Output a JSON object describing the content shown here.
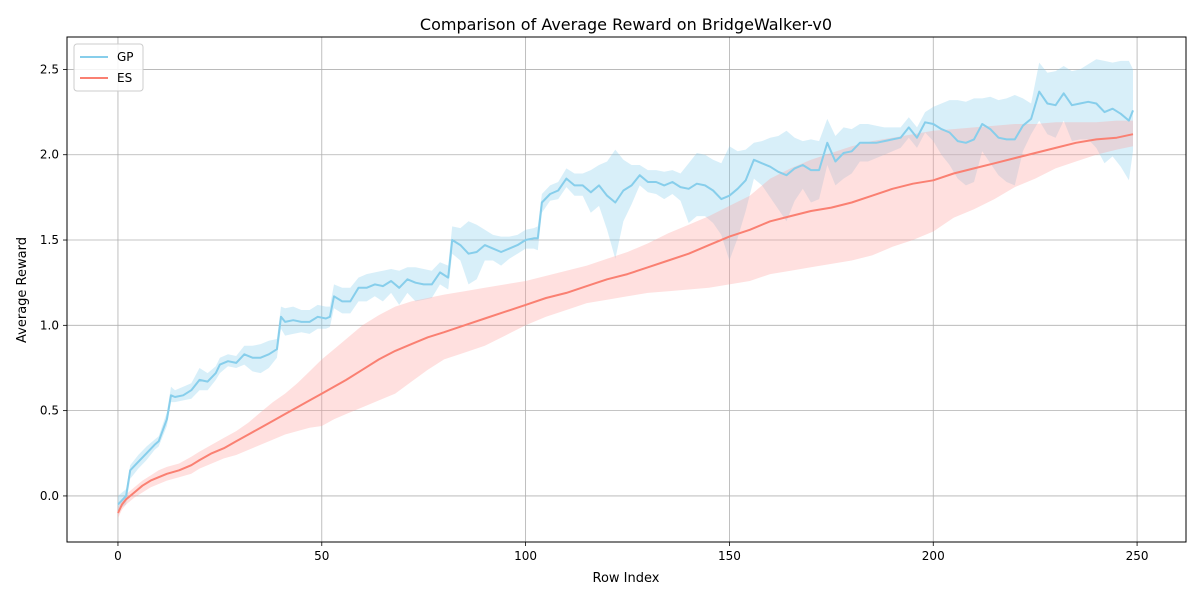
{
  "chart_data": {
    "type": "line",
    "title": "Comparison of Average Reward on BridgeWalker-v0",
    "xlabel": "Row Index",
    "ylabel": "Average Reward",
    "xlim": [
      -12.5,
      262
    ],
    "ylim": [
      -0.27,
      2.69
    ],
    "xticks": [
      0,
      50,
      100,
      150,
      200,
      250
    ],
    "yticks": [
      0.0,
      0.5,
      1.0,
      1.5,
      2.0,
      2.5
    ],
    "xtick_labels": [
      "0",
      "50",
      "100",
      "150",
      "200",
      "250"
    ],
    "ytick_labels": [
      "0.0",
      "0.5",
      "1.0",
      "1.5",
      "2.0",
      "2.5"
    ],
    "grid": true,
    "legend_position": "top-left",
    "shaded_band": "min-max range around each series",
    "series": [
      {
        "name": "GP",
        "color": "#87ceeb",
        "band_color": "#87ceeb",
        "x": [
          0,
          2,
          3,
          5,
          7,
          9,
          10,
          12,
          13,
          14,
          16,
          18,
          20,
          22,
          24,
          25,
          27,
          29,
          31,
          33,
          35,
          37,
          39,
          40,
          41,
          43,
          45,
          47,
          49,
          51,
          52,
          53,
          55,
          57,
          59,
          61,
          63,
          65,
          67,
          69,
          71,
          73,
          75,
          77,
          79,
          81,
          82,
          84,
          86,
          88,
          90,
          92,
          94,
          96,
          98,
          100,
          102,
          103,
          104,
          106,
          108,
          110,
          112,
          114,
          116,
          118,
          120,
          122,
          124,
          126,
          128,
          130,
          132,
          134,
          136,
          138,
          140,
          142,
          144,
          146,
          148,
          150,
          152,
          154,
          156,
          158,
          160,
          162,
          164,
          166,
          168,
          170,
          172,
          174,
          176,
          178,
          180,
          182,
          184,
          186,
          188,
          190,
          192,
          194,
          196,
          198,
          200,
          202,
          204,
          206,
          208,
          210,
          212,
          214,
          216,
          218,
          220,
          222,
          224,
          226,
          228,
          230,
          232,
          234,
          236,
          238,
          240,
          242,
          244,
          246,
          248,
          249
        ],
        "y": [
          -0.05,
          0.0,
          0.15,
          0.2,
          0.25,
          0.3,
          0.32,
          0.45,
          0.59,
          0.58,
          0.59,
          0.62,
          0.68,
          0.67,
          0.72,
          0.77,
          0.79,
          0.78,
          0.83,
          0.81,
          0.81,
          0.83,
          0.86,
          1.05,
          1.02,
          1.03,
          1.02,
          1.02,
          1.05,
          1.04,
          1.05,
          1.17,
          1.14,
          1.14,
          1.22,
          1.22,
          1.24,
          1.23,
          1.26,
          1.22,
          1.27,
          1.25,
          1.24,
          1.24,
          1.31,
          1.28,
          1.5,
          1.47,
          1.42,
          1.43,
          1.47,
          1.45,
          1.43,
          1.45,
          1.47,
          1.5,
          1.51,
          1.51,
          1.72,
          1.77,
          1.79,
          1.86,
          1.82,
          1.82,
          1.78,
          1.82,
          1.76,
          1.72,
          1.79,
          1.82,
          1.88,
          1.84,
          1.84,
          1.82,
          1.84,
          1.81,
          1.8,
          1.83,
          1.82,
          1.79,
          1.74,
          1.76,
          1.8,
          1.85,
          1.97,
          1.95,
          1.93,
          1.9,
          1.88,
          1.92,
          1.94,
          1.91,
          1.91,
          2.07,
          1.96,
          2.01,
          2.02,
          2.07,
          2.07,
          2.07,
          2.08,
          2.09,
          2.1,
          2.16,
          2.1,
          2.19,
          2.18,
          2.15,
          2.13,
          2.08,
          2.07,
          2.09,
          2.18,
          2.15,
          2.1,
          2.09,
          2.09,
          2.17,
          2.21,
          2.37,
          2.3,
          2.29,
          2.36,
          2.29,
          2.3,
          2.31,
          2.3,
          2.25,
          2.27,
          2.24,
          2.2,
          2.26
        ],
        "lower": [
          -0.08,
          -0.05,
          0.1,
          0.16,
          0.21,
          0.27,
          0.29,
          0.41,
          0.55,
          0.55,
          0.56,
          0.57,
          0.62,
          0.62,
          0.68,
          0.72,
          0.76,
          0.75,
          0.77,
          0.73,
          0.72,
          0.75,
          0.81,
          0.98,
          0.94,
          0.95,
          0.96,
          0.95,
          0.98,
          0.98,
          0.99,
          1.1,
          1.07,
          1.07,
          1.14,
          1.14,
          1.17,
          1.14,
          1.19,
          1.12,
          1.19,
          1.14,
          1.15,
          1.16,
          1.24,
          1.21,
          1.42,
          1.38,
          1.24,
          1.27,
          1.38,
          1.38,
          1.35,
          1.39,
          1.42,
          1.45,
          1.45,
          1.44,
          1.66,
          1.73,
          1.74,
          1.81,
          1.76,
          1.76,
          1.66,
          1.7,
          1.56,
          1.39,
          1.61,
          1.71,
          1.82,
          1.78,
          1.77,
          1.74,
          1.77,
          1.73,
          1.6,
          1.64,
          1.64,
          1.6,
          1.53,
          1.38,
          1.51,
          1.67,
          1.86,
          1.82,
          1.75,
          1.68,
          1.61,
          1.73,
          1.8,
          1.72,
          1.74,
          1.94,
          1.82,
          1.86,
          1.89,
          1.96,
          1.96,
          1.98,
          2.0,
          2.02,
          2.04,
          2.1,
          2.04,
          2.13,
          2.08,
          2.0,
          1.94,
          1.86,
          1.82,
          1.84,
          2.02,
          1.95,
          1.88,
          1.84,
          1.82,
          2.02,
          2.12,
          2.2,
          2.12,
          2.1,
          2.2,
          2.08,
          2.09,
          2.09,
          2.04,
          1.95,
          1.99,
          1.93,
          1.85,
          2.02
        ],
        "upper": [
          0.0,
          0.04,
          0.18,
          0.24,
          0.29,
          0.33,
          0.35,
          0.49,
          0.64,
          0.62,
          0.64,
          0.66,
          0.75,
          0.72,
          0.76,
          0.81,
          0.83,
          0.82,
          0.88,
          0.88,
          0.89,
          0.91,
          0.92,
          1.11,
          1.1,
          1.11,
          1.09,
          1.09,
          1.12,
          1.11,
          1.11,
          1.24,
          1.22,
          1.22,
          1.28,
          1.3,
          1.31,
          1.32,
          1.33,
          1.32,
          1.34,
          1.34,
          1.33,
          1.32,
          1.37,
          1.35,
          1.58,
          1.57,
          1.61,
          1.59,
          1.56,
          1.53,
          1.52,
          1.52,
          1.53,
          1.56,
          1.57,
          1.58,
          1.77,
          1.82,
          1.84,
          1.92,
          1.89,
          1.89,
          1.91,
          1.94,
          1.96,
          2.03,
          1.97,
          1.94,
          1.94,
          1.91,
          1.91,
          1.9,
          1.91,
          1.89,
          1.95,
          2.01,
          2.0,
          1.97,
          1.95,
          2.05,
          2.02,
          2.03,
          2.07,
          2.08,
          2.1,
          2.11,
          2.14,
          2.1,
          2.08,
          2.09,
          2.08,
          2.21,
          2.11,
          2.16,
          2.15,
          2.18,
          2.18,
          2.17,
          2.16,
          2.16,
          2.16,
          2.22,
          2.16,
          2.25,
          2.28,
          2.3,
          2.32,
          2.32,
          2.31,
          2.33,
          2.33,
          2.34,
          2.32,
          2.33,
          2.35,
          2.33,
          2.3,
          2.54,
          2.48,
          2.49,
          2.52,
          2.49,
          2.5,
          2.53,
          2.56,
          2.55,
          2.54,
          2.55,
          2.55,
          2.5
        ]
      },
      {
        "name": "ES",
        "color": "#fa8072",
        "band_color": "#ff9e9a",
        "x": [
          0,
          1,
          2,
          4,
          6,
          8,
          10,
          12,
          15,
          18,
          20,
          23,
          26,
          29,
          32,
          35,
          38,
          41,
          44,
          47,
          50,
          53,
          56,
          60,
          64,
          68,
          72,
          76,
          80,
          85,
          90,
          95,
          100,
          105,
          110,
          115,
          120,
          125,
          130,
          135,
          140,
          145,
          150,
          155,
          160,
          165,
          170,
          175,
          180,
          185,
          190,
          195,
          200,
          205,
          210,
          215,
          220,
          225,
          230,
          235,
          240,
          245,
          249
        ],
        "y": [
          -0.1,
          -0.05,
          -0.02,
          0.02,
          0.06,
          0.09,
          0.11,
          0.13,
          0.15,
          0.18,
          0.21,
          0.25,
          0.28,
          0.32,
          0.36,
          0.4,
          0.44,
          0.48,
          0.52,
          0.56,
          0.6,
          0.64,
          0.68,
          0.74,
          0.8,
          0.85,
          0.89,
          0.93,
          0.96,
          1.0,
          1.04,
          1.08,
          1.12,
          1.16,
          1.19,
          1.23,
          1.27,
          1.3,
          1.34,
          1.38,
          1.42,
          1.47,
          1.52,
          1.56,
          1.61,
          1.64,
          1.67,
          1.69,
          1.72,
          1.76,
          1.8,
          1.83,
          1.85,
          1.89,
          1.92,
          1.95,
          1.98,
          2.01,
          2.04,
          2.07,
          2.09,
          2.1,
          2.12
        ],
        "lower": [
          -0.13,
          -0.08,
          -0.05,
          -0.01,
          0.02,
          0.05,
          0.07,
          0.09,
          0.11,
          0.13,
          0.16,
          0.19,
          0.22,
          0.24,
          0.27,
          0.3,
          0.33,
          0.36,
          0.38,
          0.4,
          0.41,
          0.45,
          0.48,
          0.52,
          0.56,
          0.6,
          0.67,
          0.74,
          0.8,
          0.84,
          0.88,
          0.94,
          1.0,
          1.05,
          1.09,
          1.13,
          1.15,
          1.17,
          1.19,
          1.2,
          1.21,
          1.22,
          1.24,
          1.26,
          1.3,
          1.32,
          1.34,
          1.36,
          1.38,
          1.41,
          1.46,
          1.5,
          1.55,
          1.63,
          1.68,
          1.74,
          1.81,
          1.86,
          1.92,
          1.96,
          2.0,
          2.03,
          2.05
        ],
        "upper": [
          -0.07,
          -0.02,
          0.01,
          0.05,
          0.09,
          0.12,
          0.15,
          0.17,
          0.19,
          0.23,
          0.26,
          0.3,
          0.34,
          0.38,
          0.43,
          0.49,
          0.55,
          0.6,
          0.66,
          0.73,
          0.8,
          0.86,
          0.92,
          1.0,
          1.06,
          1.11,
          1.14,
          1.16,
          1.18,
          1.2,
          1.22,
          1.24,
          1.26,
          1.29,
          1.32,
          1.35,
          1.39,
          1.43,
          1.48,
          1.54,
          1.59,
          1.64,
          1.7,
          1.76,
          1.86,
          1.92,
          1.97,
          2.01,
          2.05,
          2.08,
          2.1,
          2.12,
          2.14,
          2.15,
          2.16,
          2.17,
          2.18,
          2.18,
          2.19,
          2.19,
          2.19,
          2.2,
          2.2
        ]
      }
    ]
  }
}
